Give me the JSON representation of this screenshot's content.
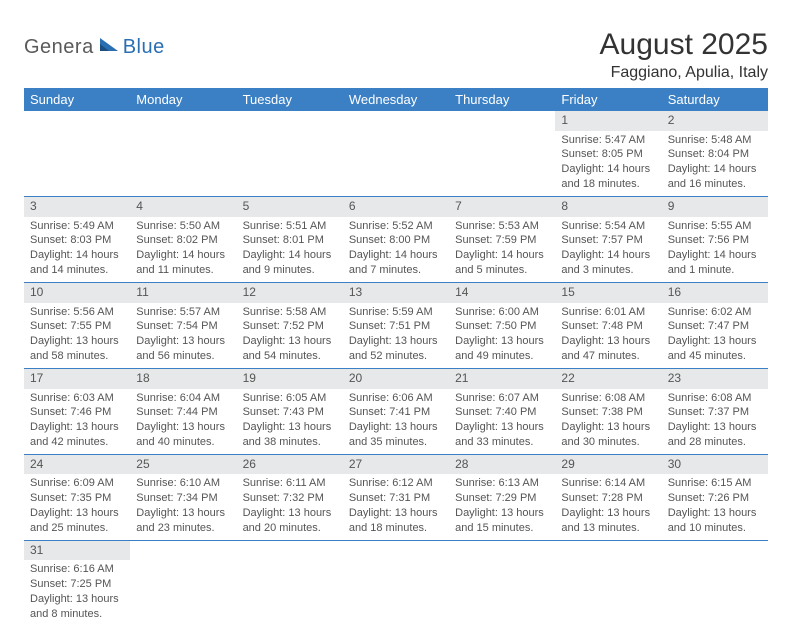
{
  "logo": {
    "text1": "Genera",
    "text2": "Blue"
  },
  "title": "August 2025",
  "location": "Faggiano, Apulia, Italy",
  "colors": {
    "header_bg": "#3b7fc4",
    "header_text": "#ffffff",
    "daynum_bg": "#e7e8e9",
    "border": "#3b7fc4",
    "text": "#555555",
    "logo_gray": "#5a5a5a",
    "logo_blue": "#2b6fb3"
  },
  "weekdays": [
    "Sunday",
    "Monday",
    "Tuesday",
    "Wednesday",
    "Thursday",
    "Friday",
    "Saturday"
  ],
  "weeks": [
    [
      null,
      null,
      null,
      null,
      null,
      {
        "n": "1",
        "sr": "Sunrise: 5:47 AM",
        "ss": "Sunset: 8:05 PM",
        "dl": "Daylight: 14 hours and 18 minutes."
      },
      {
        "n": "2",
        "sr": "Sunrise: 5:48 AM",
        "ss": "Sunset: 8:04 PM",
        "dl": "Daylight: 14 hours and 16 minutes."
      }
    ],
    [
      {
        "n": "3",
        "sr": "Sunrise: 5:49 AM",
        "ss": "Sunset: 8:03 PM",
        "dl": "Daylight: 14 hours and 14 minutes."
      },
      {
        "n": "4",
        "sr": "Sunrise: 5:50 AM",
        "ss": "Sunset: 8:02 PM",
        "dl": "Daylight: 14 hours and 11 minutes."
      },
      {
        "n": "5",
        "sr": "Sunrise: 5:51 AM",
        "ss": "Sunset: 8:01 PM",
        "dl": "Daylight: 14 hours and 9 minutes."
      },
      {
        "n": "6",
        "sr": "Sunrise: 5:52 AM",
        "ss": "Sunset: 8:00 PM",
        "dl": "Daylight: 14 hours and 7 minutes."
      },
      {
        "n": "7",
        "sr": "Sunrise: 5:53 AM",
        "ss": "Sunset: 7:59 PM",
        "dl": "Daylight: 14 hours and 5 minutes."
      },
      {
        "n": "8",
        "sr": "Sunrise: 5:54 AM",
        "ss": "Sunset: 7:57 PM",
        "dl": "Daylight: 14 hours and 3 minutes."
      },
      {
        "n": "9",
        "sr": "Sunrise: 5:55 AM",
        "ss": "Sunset: 7:56 PM",
        "dl": "Daylight: 14 hours and 1 minute."
      }
    ],
    [
      {
        "n": "10",
        "sr": "Sunrise: 5:56 AM",
        "ss": "Sunset: 7:55 PM",
        "dl": "Daylight: 13 hours and 58 minutes."
      },
      {
        "n": "11",
        "sr": "Sunrise: 5:57 AM",
        "ss": "Sunset: 7:54 PM",
        "dl": "Daylight: 13 hours and 56 minutes."
      },
      {
        "n": "12",
        "sr": "Sunrise: 5:58 AM",
        "ss": "Sunset: 7:52 PM",
        "dl": "Daylight: 13 hours and 54 minutes."
      },
      {
        "n": "13",
        "sr": "Sunrise: 5:59 AM",
        "ss": "Sunset: 7:51 PM",
        "dl": "Daylight: 13 hours and 52 minutes."
      },
      {
        "n": "14",
        "sr": "Sunrise: 6:00 AM",
        "ss": "Sunset: 7:50 PM",
        "dl": "Daylight: 13 hours and 49 minutes."
      },
      {
        "n": "15",
        "sr": "Sunrise: 6:01 AM",
        "ss": "Sunset: 7:48 PM",
        "dl": "Daylight: 13 hours and 47 minutes."
      },
      {
        "n": "16",
        "sr": "Sunrise: 6:02 AM",
        "ss": "Sunset: 7:47 PM",
        "dl": "Daylight: 13 hours and 45 minutes."
      }
    ],
    [
      {
        "n": "17",
        "sr": "Sunrise: 6:03 AM",
        "ss": "Sunset: 7:46 PM",
        "dl": "Daylight: 13 hours and 42 minutes."
      },
      {
        "n": "18",
        "sr": "Sunrise: 6:04 AM",
        "ss": "Sunset: 7:44 PM",
        "dl": "Daylight: 13 hours and 40 minutes."
      },
      {
        "n": "19",
        "sr": "Sunrise: 6:05 AM",
        "ss": "Sunset: 7:43 PM",
        "dl": "Daylight: 13 hours and 38 minutes."
      },
      {
        "n": "20",
        "sr": "Sunrise: 6:06 AM",
        "ss": "Sunset: 7:41 PM",
        "dl": "Daylight: 13 hours and 35 minutes."
      },
      {
        "n": "21",
        "sr": "Sunrise: 6:07 AM",
        "ss": "Sunset: 7:40 PM",
        "dl": "Daylight: 13 hours and 33 minutes."
      },
      {
        "n": "22",
        "sr": "Sunrise: 6:08 AM",
        "ss": "Sunset: 7:38 PM",
        "dl": "Daylight: 13 hours and 30 minutes."
      },
      {
        "n": "23",
        "sr": "Sunrise: 6:08 AM",
        "ss": "Sunset: 7:37 PM",
        "dl": "Daylight: 13 hours and 28 minutes."
      }
    ],
    [
      {
        "n": "24",
        "sr": "Sunrise: 6:09 AM",
        "ss": "Sunset: 7:35 PM",
        "dl": "Daylight: 13 hours and 25 minutes."
      },
      {
        "n": "25",
        "sr": "Sunrise: 6:10 AM",
        "ss": "Sunset: 7:34 PM",
        "dl": "Daylight: 13 hours and 23 minutes."
      },
      {
        "n": "26",
        "sr": "Sunrise: 6:11 AM",
        "ss": "Sunset: 7:32 PM",
        "dl": "Daylight: 13 hours and 20 minutes."
      },
      {
        "n": "27",
        "sr": "Sunrise: 6:12 AM",
        "ss": "Sunset: 7:31 PM",
        "dl": "Daylight: 13 hours and 18 minutes."
      },
      {
        "n": "28",
        "sr": "Sunrise: 6:13 AM",
        "ss": "Sunset: 7:29 PM",
        "dl": "Daylight: 13 hours and 15 minutes."
      },
      {
        "n": "29",
        "sr": "Sunrise: 6:14 AM",
        "ss": "Sunset: 7:28 PM",
        "dl": "Daylight: 13 hours and 13 minutes."
      },
      {
        "n": "30",
        "sr": "Sunrise: 6:15 AM",
        "ss": "Sunset: 7:26 PM",
        "dl": "Daylight: 13 hours and 10 minutes."
      }
    ],
    [
      {
        "n": "31",
        "sr": "Sunrise: 6:16 AM",
        "ss": "Sunset: 7:25 PM",
        "dl": "Daylight: 13 hours and 8 minutes."
      },
      null,
      null,
      null,
      null,
      null,
      null
    ]
  ]
}
